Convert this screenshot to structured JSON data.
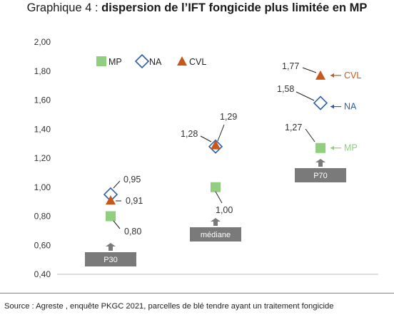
{
  "title_prefix": "Graphique 4 : ",
  "title_bold": "dispersion de l’IFT fongicide plus limitée en MP",
  "source": "Source : Agreste , enquête PKGC 2021, parcelles de blé tendre ayant un traitement fongicide",
  "colors": {
    "MP": "#8fcf7e",
    "NA": "#2f5da8",
    "CVL": "#c8571b",
    "box": "#7a7a7a",
    "axis": "#bdbdbd",
    "rule": "#3aa0a8"
  },
  "chart_data": {
    "type": "scatter",
    "categories": [
      "P30",
      "médiane",
      "P70"
    ],
    "ylim": [
      0.4,
      2.0
    ],
    "yticks": [
      "0,40",
      "0,60",
      "0,80",
      "1,00",
      "1,20",
      "1,40",
      "1,60",
      "1,80",
      "2,00"
    ],
    "legend": [
      "MP",
      "NA",
      "CVL"
    ],
    "series": [
      {
        "name": "MP",
        "marker": "square",
        "values": [
          0.8,
          1.0,
          1.27
        ],
        "labels": [
          "0,80",
          "1,00",
          "1,27"
        ]
      },
      {
        "name": "NA",
        "marker": "diamond",
        "values": [
          0.95,
          1.28,
          1.58
        ],
        "labels": [
          "0,95",
          "1,28",
          "1,58"
        ]
      },
      {
        "name": "CVL",
        "marker": "triangle",
        "values": [
          0.91,
          1.29,
          1.77
        ],
        "labels": [
          "0,91",
          "1,29",
          "1,77"
        ]
      }
    ],
    "series_arrow_labels": [
      "MP",
      "NA",
      "CVL"
    ]
  }
}
